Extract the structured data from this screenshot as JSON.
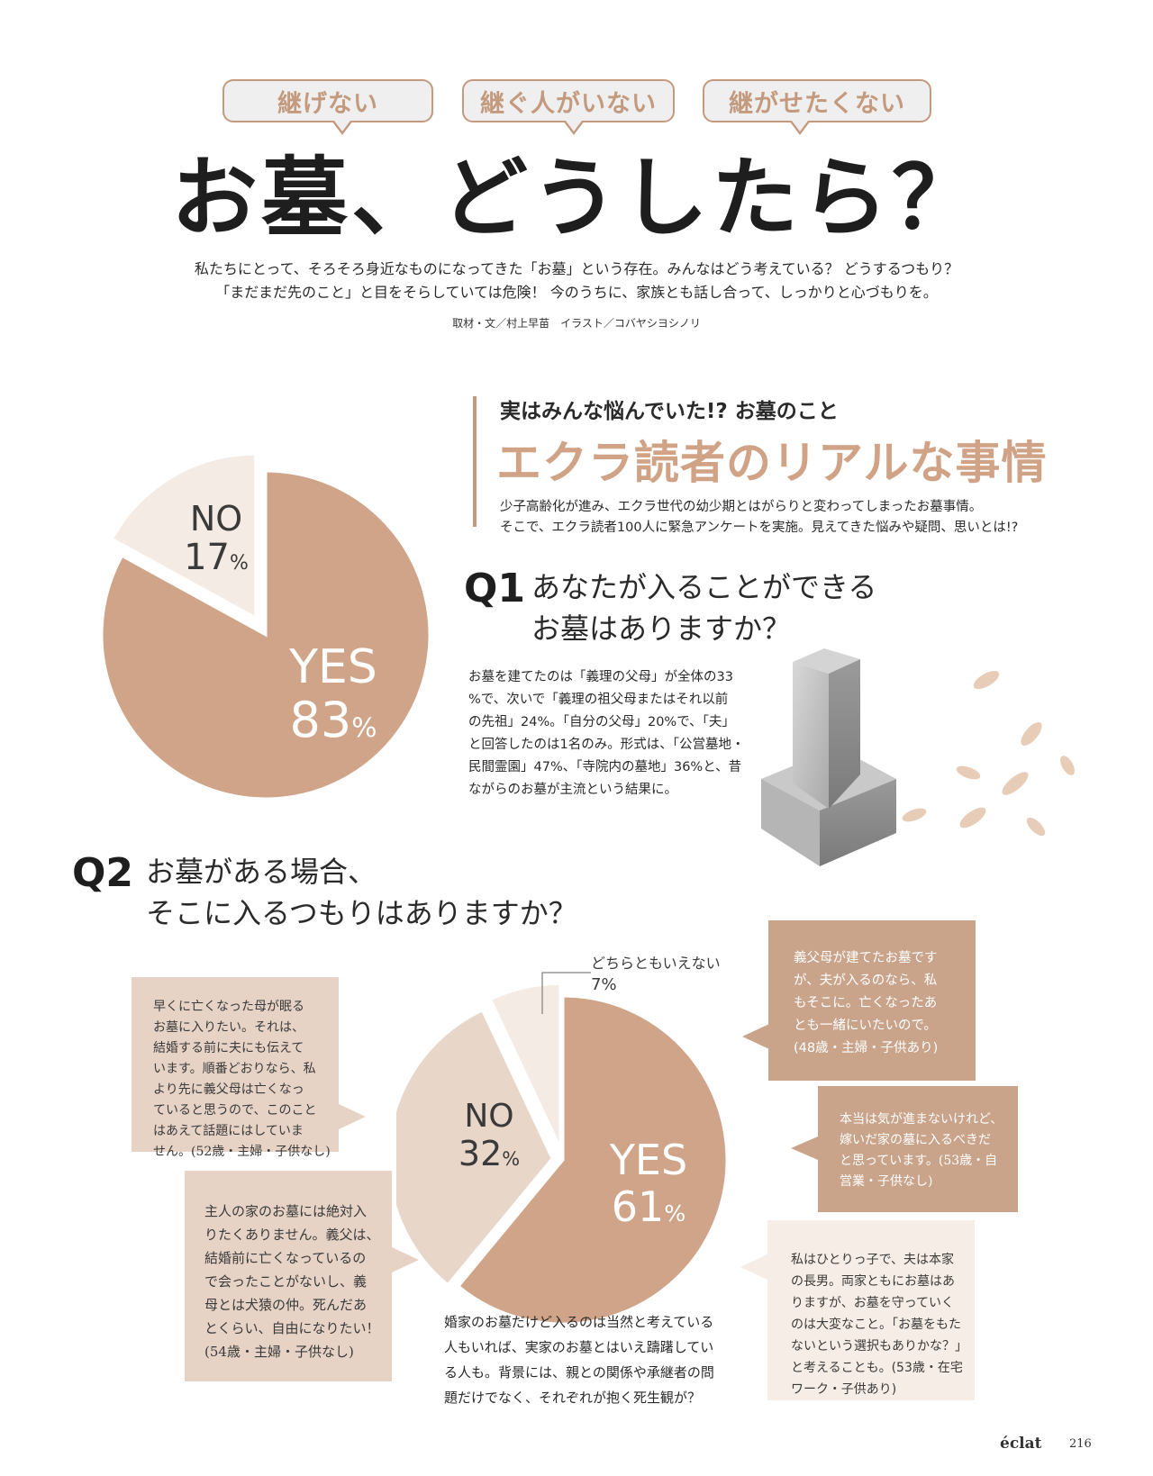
{
  "tags": [
    "継げない",
    "継ぐ人がいない",
    "継がせたくない"
  ],
  "title": "お墓、どうしたら？",
  "lead": [
    "私たちにとって、そろそろ身近なものになってきた「お墓」という存在。みんなはどう考えている？ どうするつもり？",
    "「まだまだ先のこと」と目をそらしていては危険！ 今のうちに、家族とも話し合って、しっかりと心づもりを。"
  ],
  "credit": "取材・文／村上早苗　イラスト／コバヤシヨシノリ",
  "section": {
    "kicker": "実はみんな悩んでいた!?  お墓のこと",
    "title": "エクラ読者のリアルな事情",
    "desc": [
      "少子高齢化が進み、エクラ世代の幼少期とはがらりと変わってしまったお墓事情。",
      "そこで、エクラ読者100人に緊急アンケートを実施。見えてきた悩みや疑問、思いとは!?"
    ]
  },
  "q1": {
    "num": "Q1",
    "text": [
      "あなたが入ることができる",
      "お墓はありますか？"
    ],
    "body": [
      "お墓を建てたのは「義理の父母」が全体の33",
      "%で、次いで「義理の祖父母またはそれ以前",
      "の先祖」24%。「自分の父母」20%で、「夫」",
      "と回答したのは1名のみ。形式は、「公営墓地・",
      "民間霊園」47%、「寺院内の墓地」36%と、昔",
      "ながらのお墓が主流という結果に。"
    ]
  },
  "q2": {
    "num": "Q2",
    "text": [
      "お墓がある場合、",
      "そこに入るつもりはありますか？"
    ],
    "body": [
      "婚家のお墓だけど入るのは当然と考えている",
      "人もいれば、実家のお墓とはいえ躊躇してい",
      "る人も。背景には、親との関係や承継者の問",
      "題だけでなく、それぞれが抱く死生観が？"
    ],
    "quotes": {
      "q_a": [
        "早くに亡くなった母が眠る",
        "お墓に入りたい。それは、",
        "結婚する前に夫にも伝えて",
        "います。順番どおりなら、私",
        "より先に義父母は亡くなっ",
        "ていると思うので、このこと",
        "はあえて話題にはしていま",
        "せん。(52歳・主婦・子供なし)"
      ],
      "q_b": [
        "主人の家のお墓には絶対入",
        "りたくありません。義父は、",
        "結婚前に亡くなっているの",
        "で会ったことがないし、義",
        "母とは犬猿の仲。死んだあ",
        "とくらい、自由になりたい！",
        "(54歳・主婦・子供なし)"
      ],
      "q_c": [
        "義父母が建てたお墓です",
        "が、夫が入るのなら、私",
        "もそこに。亡くなったあ",
        "とも一緒にいたいので。",
        "(48歳・主婦・子供あり)"
      ],
      "q_d": [
        "本当は気が進まないけれど、",
        "嫁いだ家の墓に入るべきだ",
        "と思っています。(53歳・自",
        "営業・子供なし)"
      ],
      "q_e": [
        "私はひとりっ子で、夫は本家",
        "の長男。両家ともにお墓はあ",
        "りますが、お墓を守っていく",
        "のは大変なこと。「お墓をもた",
        "ないという選択もありかな？」",
        "と考えることも。(53歳・在宅",
        "ワーク・子供あり)"
      ]
    }
  },
  "chart_data": [
    {
      "type": "pie",
      "title": "あなたが入ることができるお墓はありますか？",
      "categories": [
        "YES",
        "NO"
      ],
      "values": [
        83,
        17
      ],
      "unit": "%",
      "colors": [
        "#cfa488",
        "#f4ece4"
      ]
    },
    {
      "type": "pie",
      "title": "お墓がある場合、そこに入るつもりはありますか？",
      "categories": [
        "YES",
        "NO",
        "どちらともいえない"
      ],
      "values": [
        61,
        32,
        7
      ],
      "unit": "%",
      "colors": [
        "#cfa488",
        "#e8d6c9",
        "#f4ece4"
      ]
    }
  ],
  "footer": {
    "brand": "éclat",
    "page": "216"
  }
}
